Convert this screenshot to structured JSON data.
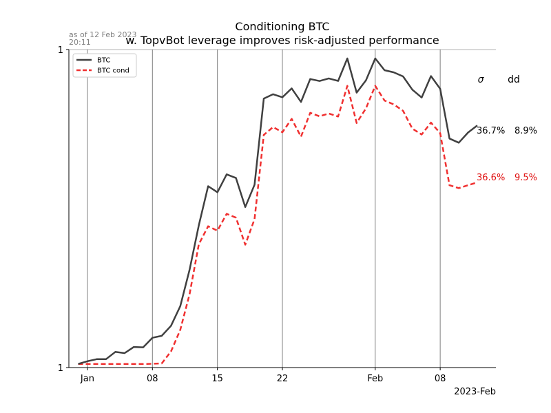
{
  "chart_data": {
    "type": "line",
    "title": "Conditioning BTC",
    "subtitle": "w. TopvBot leverage improves risk-adjusted performance",
    "timestamp": "as of 12 Feb 2023\n20:11",
    "xlabel": "",
    "ylabel": "",
    "y_scale": "log",
    "grid": "vertical",
    "legend_position": "top-left",
    "x_range": [
      "2022-12-30",
      "2023-02-14"
    ],
    "x_ticks": [
      {
        "date": "2023-01-01",
        "label": "Jan"
      },
      {
        "date": "2023-01-08",
        "label": "08"
      },
      {
        "date": "2023-01-15",
        "label": "15"
      },
      {
        "date": "2023-01-22",
        "label": "22"
      },
      {
        "date": "2023-02-01",
        "label": "Feb"
      },
      {
        "date": "2023-02-08",
        "label": "08"
      }
    ],
    "x_offset_label": "2023-Feb",
    "y_ticks": [
      {
        "value": 1.0,
        "label": "1"
      },
      {
        "value": 1.0,
        "label": "1"
      }
    ],
    "stats_headers": [
      "σ",
      "dd"
    ],
    "dates": [
      "2022-12-31",
      "2023-01-01",
      "2023-01-02",
      "2023-01-03",
      "2023-01-04",
      "2023-01-05",
      "2023-01-06",
      "2023-01-07",
      "2023-01-08",
      "2023-01-09",
      "2023-01-10",
      "2023-01-11",
      "2023-01-12",
      "2023-01-13",
      "2023-01-14",
      "2023-01-15",
      "2023-01-16",
      "2023-01-17",
      "2023-01-18",
      "2023-01-19",
      "2023-01-20",
      "2023-01-21",
      "2023-01-22",
      "2023-01-23",
      "2023-01-24",
      "2023-01-25",
      "2023-01-26",
      "2023-01-27",
      "2023-01-28",
      "2023-01-29",
      "2023-01-30",
      "2023-01-31",
      "2023-02-01",
      "2023-02-02",
      "2023-02-03",
      "2023-02-04",
      "2023-02-05",
      "2023-02-06",
      "2023-02-07",
      "2023-02-08",
      "2023-02-09",
      "2023-02-10",
      "2023-02-11",
      "2023-02-12"
    ],
    "series": [
      {
        "name": "BTC",
        "color": "#404040",
        "style": "solid",
        "stats": [
          "36.7%",
          "8.9%"
        ],
        "values": [
          0.9975,
          1.0004,
          1.0027,
          1.0027,
          1.0107,
          1.0094,
          1.0162,
          1.0158,
          1.0265,
          1.0287,
          1.0401,
          1.0627,
          1.1059,
          1.1616,
          1.2123,
          1.2043,
          1.2282,
          1.2233,
          1.1849,
          1.2144,
          1.3346,
          1.3411,
          1.3367,
          1.3497,
          1.3298,
          1.3637,
          1.3607,
          1.3646,
          1.3608,
          1.3948,
          1.3434,
          1.3616,
          1.3948,
          1.3769,
          1.3737,
          1.3676,
          1.3478,
          1.3362,
          1.3681,
          1.3491,
          1.2774,
          1.2716,
          1.2859,
          1.2959
        ]
      },
      {
        "name": "BTC cond",
        "color": "#f03030",
        "style": "dashed",
        "stats": [
          "36.6%",
          "9.5%"
        ],
        "values": [
          0.9975,
          0.9975,
          0.9975,
          0.9975,
          0.9975,
          0.9975,
          0.9974,
          0.9974,
          0.9976,
          0.998,
          1.0113,
          1.0354,
          1.0767,
          1.1376,
          1.1602,
          1.1546,
          1.1762,
          1.1712,
          1.1369,
          1.1694,
          1.2826,
          1.2936,
          1.2863,
          1.3053,
          1.28,
          1.314,
          1.309,
          1.313,
          1.3087,
          1.3535,
          1.2994,
          1.3204,
          1.3535,
          1.3318,
          1.3262,
          1.3169,
          1.2914,
          1.2831,
          1.3,
          1.285,
          1.2136,
          1.2098,
          1.2136,
          1.2175
        ]
      }
    ]
  }
}
